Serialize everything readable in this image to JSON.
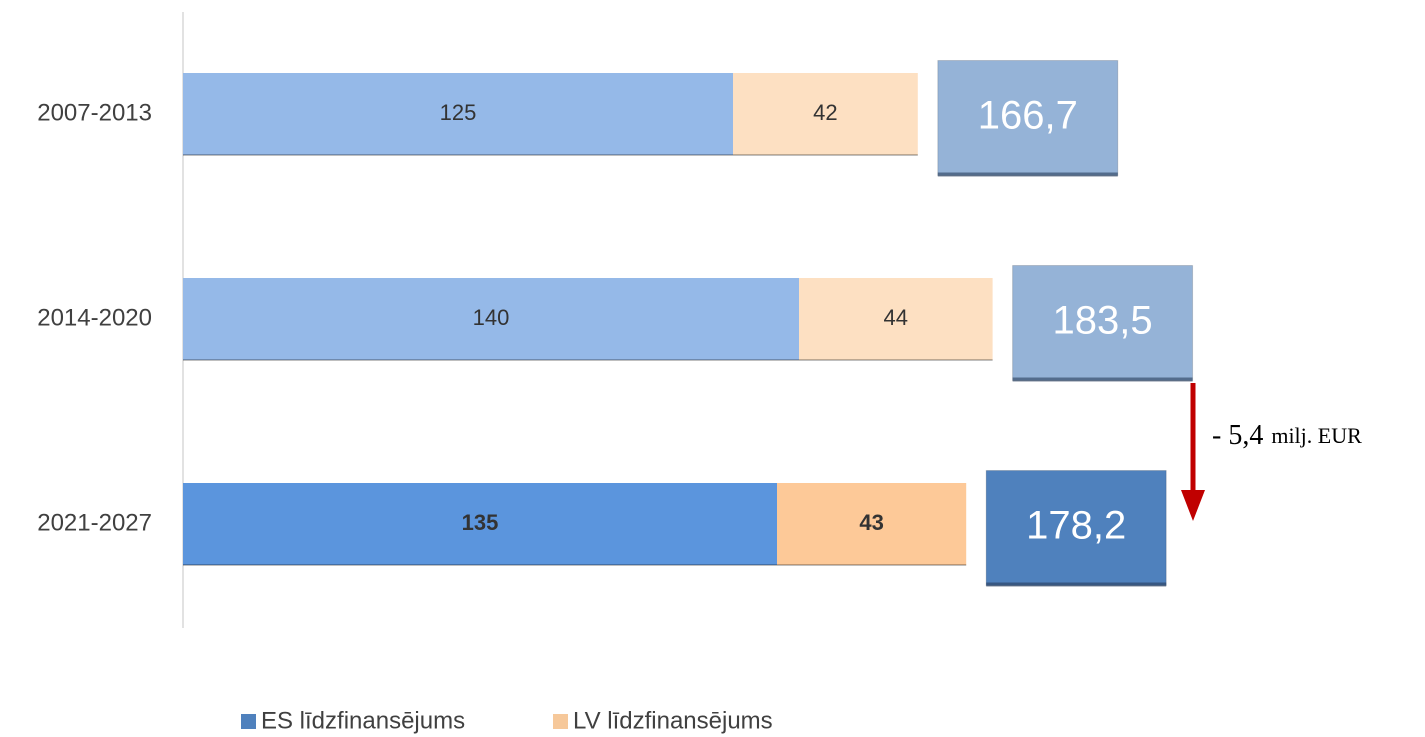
{
  "chart_data": {
    "type": "stacked-bar-horizontal",
    "categories": [
      "2007-2013",
      "2014-2020",
      "2021-2027"
    ],
    "series": [
      {
        "name": "ES līdzfinansējums",
        "color": "#4f81bd",
        "bar_colors": [
          "#95b9e8",
          "#95b9e8",
          "#5b95dd"
        ],
        "values": [
          125,
          140,
          135
        ]
      },
      {
        "name": "LV līdzfinansējums",
        "color": "#f6c89a",
        "bar_colors": [
          "#fde0c2",
          "#fde0c2",
          "#fdc998"
        ],
        "values": [
          42,
          44,
          43
        ]
      }
    ],
    "totals": {
      "values": [
        166.7,
        183.5,
        178.2
      ],
      "value_labels": [
        "166,7",
        "183,5",
        "178,2"
      ],
      "colors": [
        "#95b3d7",
        "#95b3d7",
        "#4f81bd"
      ]
    },
    "annotation": {
      "value": "- 5,4",
      "unit": "milj. EUR",
      "color": "#c00000"
    },
    "xlim": [
      0,
      280
    ],
    "legend": "bottom"
  }
}
